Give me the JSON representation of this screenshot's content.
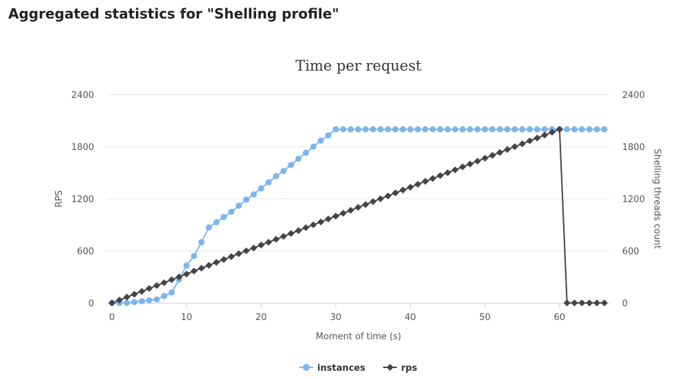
{
  "page": {
    "heading": "Aggregated statistics for \"Shelling profile\""
  },
  "colors": {
    "instances": "#7cb5ec",
    "rps": "#434348",
    "grid": "#e6e6e6",
    "axis_line": "#ccd6eb"
  },
  "chart_data": {
    "type": "line",
    "title": "Time per request",
    "xlabel": "Moment of time (s)",
    "ylabel_left": "RPS",
    "ylabel_right": "Shelling threads count",
    "xlim": [
      0,
      66
    ],
    "ylim_left": [
      0,
      2400
    ],
    "ylim_right": [
      0,
      2400
    ],
    "x_ticks": [
      "0",
      "10",
      "20",
      "30",
      "40",
      "50",
      "60"
    ],
    "y_ticks_left": [
      "0",
      "600",
      "1200",
      "1800",
      "2400"
    ],
    "y_ticks_right": [
      "0",
      "600",
      "1200",
      "1800",
      "2400"
    ],
    "grid": true,
    "legend_position": "bottom-center",
    "series": [
      {
        "name": "instances",
        "marker": "circle",
        "x": [
          0,
          1,
          2,
          3,
          4,
          5,
          6,
          7,
          8,
          9,
          10,
          11,
          12,
          13,
          14,
          15,
          16,
          17,
          18,
          19,
          20,
          21,
          22,
          23,
          24,
          25,
          26,
          27,
          28,
          29,
          30,
          31,
          32,
          33,
          34,
          35,
          36,
          37,
          38,
          39,
          40,
          41,
          42,
          43,
          44,
          45,
          46,
          47,
          48,
          49,
          50,
          51,
          52,
          53,
          54,
          55,
          56,
          57,
          58,
          59,
          60,
          61,
          62,
          63,
          64,
          65,
          66
        ],
        "values": [
          0,
          0,
          0,
          10,
          20,
          30,
          40,
          80,
          120,
          270,
          430,
          540,
          700,
          870,
          930,
          990,
          1050,
          1120,
          1190,
          1250,
          1320,
          1390,
          1460,
          1520,
          1590,
          1660,
          1730,
          1800,
          1870,
          1930,
          2000,
          2000,
          2000,
          2000,
          2000,
          2000,
          2000,
          2000,
          2000,
          2000,
          2000,
          2000,
          2000,
          2000,
          2000,
          2000,
          2000,
          2000,
          2000,
          2000,
          2000,
          2000,
          2000,
          2000,
          2000,
          2000,
          2000,
          2000,
          2000,
          2000,
          2000,
          2000,
          2000,
          2000,
          2000,
          2000,
          2000
        ]
      },
      {
        "name": "rps",
        "marker": "diamond",
        "x": [
          0,
          1,
          2,
          3,
          4,
          5,
          6,
          7,
          8,
          9,
          10,
          11,
          12,
          13,
          14,
          15,
          16,
          17,
          18,
          19,
          20,
          21,
          22,
          23,
          24,
          25,
          26,
          27,
          28,
          29,
          30,
          31,
          32,
          33,
          34,
          35,
          36,
          37,
          38,
          39,
          40,
          41,
          42,
          43,
          44,
          45,
          46,
          47,
          48,
          49,
          50,
          51,
          52,
          53,
          54,
          55,
          56,
          57,
          58,
          59,
          60,
          61,
          62,
          63,
          64,
          65,
          66
        ],
        "values": [
          0,
          33,
          67,
          100,
          133,
          167,
          200,
          233,
          267,
          300,
          333,
          367,
          400,
          433,
          467,
          500,
          533,
          567,
          600,
          633,
          667,
          700,
          733,
          767,
          800,
          833,
          867,
          900,
          933,
          967,
          1000,
          1033,
          1067,
          1100,
          1133,
          1167,
          1200,
          1233,
          1267,
          1300,
          1333,
          1367,
          1400,
          1433,
          1467,
          1500,
          1533,
          1567,
          1600,
          1633,
          1667,
          1700,
          1733,
          1767,
          1800,
          1833,
          1867,
          1900,
          1933,
          1967,
          2000,
          0,
          0,
          0,
          0,
          0,
          0
        ]
      }
    ]
  }
}
